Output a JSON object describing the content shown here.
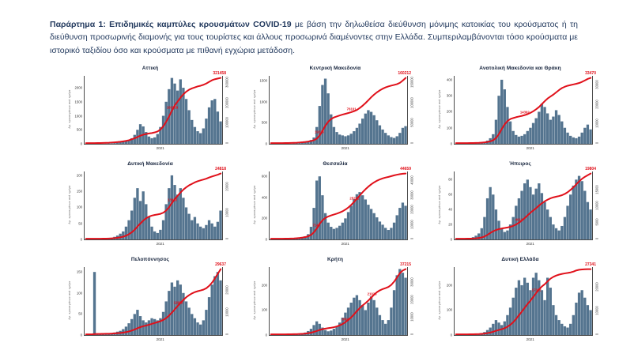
{
  "caption": {
    "bold": "Παράρτημα 1: Επιδημικές καμπύλες κρουσμάτων COVID-19",
    "regular": " με βάση την δηλωθείσα διεύθυνση μόνιμης κατοικίας του κρούσματος ή τη διεύθυνση προσωρινής διαμονής για τους τουρίστες και άλλους προσωρινά διαμένοντες στην Ελλάδα. Συμπεριλαμβάνονται τόσο κρούσματα με ιστορικό ταξιδίου όσο και κρούσματα με πιθανή εγχώρια μετάδοση."
  },
  "colors": {
    "bar": "#54748f",
    "line": "#e0101a",
    "axis": "#4a4a4a",
    "title": "#16243d",
    "caption_text": "#233a5e"
  },
  "axes": {
    "y_left_title": "Αρ. κρουσμάτων ανά ημέρα",
    "x_tick_label": "2021"
  },
  "chart_data": [
    {
      "type": "bar+line",
      "title": "Αττική",
      "cumulative_total_label": "321458",
      "ymax": 2400,
      "left_ticks": [
        0,
        500,
        1000,
        1500,
        2000
      ],
      "cmax": 321458,
      "right_ticks": [
        0,
        100000,
        200000,
        300000
      ],
      "x_tick": "2021",
      "annotations": [
        {
          "idx": 30,
          "label": "160729"
        }
      ],
      "bars": [
        0,
        0,
        0,
        1,
        2,
        3,
        5,
        8,
        12,
        18,
        25,
        40,
        60,
        80,
        100,
        140,
        200,
        320,
        500,
        700,
        620,
        420,
        260,
        200,
        230,
        350,
        600,
        1000,
        1500,
        1950,
        2350,
        2150,
        1900,
        2300,
        2000,
        1600,
        1200,
        850,
        600,
        450,
        380,
        550,
        900,
        1300,
        1550,
        1600,
        1150,
        800
      ],
      "cum_pct": [
        0,
        0,
        0,
        0,
        0.1,
        0.2,
        0.3,
        0.5,
        0.7,
        1,
        1.3,
        1.7,
        2.2,
        2.8,
        3.5,
        4.5,
        6,
        7.5,
        9.5,
        11.5,
        13,
        14,
        14.8,
        15.5,
        16.5,
        18,
        21,
        26,
        33,
        41,
        50,
        58,
        64,
        70,
        75,
        79,
        82,
        84,
        85.5,
        87,
        88,
        89.5,
        91.5,
        94,
        96.5,
        98,
        99,
        100
      ]
    },
    {
      "type": "bar+line",
      "title": "Κεντρική Μακεδονία",
      "cumulative_total_label": "160212",
      "ymax": 1600,
      "left_ticks": [
        0,
        500,
        1000,
        1500
      ],
      "cmax": 160212,
      "right_ticks": [
        0,
        50000,
        100000,
        150000
      ],
      "x_tick": "2021",
      "annotations": [
        {
          "idx": 17,
          "label": "19226"
        },
        {
          "idx": 28,
          "label": "76101"
        }
      ],
      "bars": [
        0,
        0,
        0,
        0,
        1,
        2,
        3,
        5,
        8,
        12,
        20,
        30,
        45,
        60,
        90,
        150,
        400,
        900,
        1400,
        1550,
        1200,
        700,
        400,
        280,
        220,
        200,
        180,
        200,
        240,
        300,
        380,
        480,
        600,
        720,
        800,
        760,
        680,
        560,
        440,
        340,
        260,
        200,
        160,
        140,
        180,
        260,
        380,
        420
      ],
      "cum_pct": [
        0,
        0,
        0,
        0,
        0,
        0.1,
        0.2,
        0.3,
        0.5,
        0.7,
        1,
        1.4,
        1.9,
        2.5,
        3.3,
        4.5,
        7,
        12,
        19,
        27,
        33,
        37,
        39.5,
        41,
        42.5,
        43.8,
        45,
        46.2,
        47.5,
        49,
        51,
        54,
        57.5,
        61.5,
        66,
        70.5,
        74.5,
        78,
        81,
        83.5,
        85.5,
        87,
        88.2,
        89.3,
        90.5,
        92.5,
        96,
        100
      ]
    },
    {
      "type": "bar+line",
      "title": "Ανατολική Μακεδονία και Θράκη",
      "cumulative_total_label": "33470",
      "ymax": 420,
      "left_ticks": [
        0,
        100,
        200,
        300,
        400
      ],
      "cmax": 33470,
      "right_ticks": [
        0,
        10000,
        20000,
        30000
      ],
      "x_tick": "2021",
      "annotations": [
        {
          "idx": 24,
          "label": "14392"
        }
      ],
      "bars": [
        0,
        0,
        0,
        0,
        1,
        1,
        2,
        3,
        5,
        8,
        12,
        20,
        35,
        60,
        150,
        300,
        400,
        340,
        230,
        140,
        80,
        55,
        45,
        50,
        60,
        80,
        100,
        130,
        160,
        200,
        250,
        230,
        190,
        150,
        170,
        210,
        180,
        140,
        100,
        70,
        50,
        40,
        35,
        45,
        70,
        100,
        120,
        90
      ],
      "cum_pct": [
        0,
        0,
        0,
        0,
        0,
        0.1,
        0.2,
        0.3,
        0.5,
        0.8,
        1.2,
        1.8,
        2.8,
        4.5,
        8,
        14,
        22,
        29,
        34,
        37,
        38.5,
        39.8,
        40.8,
        41.8,
        43,
        44.5,
        46.5,
        49,
        52,
        55.5,
        60,
        64.5,
        68.5,
        71.5,
        74.5,
        78,
        81.5,
        84.5,
        86.5,
        88,
        89,
        90,
        91,
        92.2,
        94,
        96.2,
        98.5,
        100
      ]
    },
    {
      "type": "bar+line",
      "title": "Δυτική Μακεδονία",
      "cumulative_total_label": "24818",
      "ymax": 210,
      "left_ticks": [
        0,
        50,
        100,
        150,
        200
      ],
      "cmax": 24818,
      "right_ticks": [
        0,
        10000,
        20000
      ],
      "x_tick": "2021",
      "annotations": [
        {
          "idx": 30,
          "label": "13650"
        }
      ],
      "bars": [
        0,
        0,
        0,
        0,
        0,
        1,
        1,
        2,
        3,
        5,
        8,
        12,
        18,
        25,
        40,
        60,
        90,
        130,
        160,
        120,
        150,
        110,
        70,
        40,
        25,
        20,
        30,
        60,
        110,
        160,
        200,
        170,
        140,
        160,
        130,
        100,
        80,
        60,
        70,
        50,
        40,
        35,
        45,
        60,
        50,
        40,
        55,
        90
      ],
      "cum_pct": [
        0,
        0,
        0,
        0,
        0,
        0,
        0.1,
        0.2,
        0.4,
        0.6,
        1,
        1.5,
        2.2,
        3.2,
        4.8,
        7,
        10,
        14,
        19,
        23.5,
        28,
        31.5,
        34,
        35.5,
        36.5,
        37.3,
        38.2,
        40,
        43.5,
        48.5,
        55,
        61,
        66,
        71,
        75.5,
        79,
        82,
        84.2,
        86.5,
        88.2,
        89.6,
        90.8,
        92.2,
        94,
        95.5,
        96.8,
        98.2,
        100
      ]
    },
    {
      "type": "bar+line",
      "title": "Θεσσαλία",
      "cumulative_total_label": "44659",
      "ymax": 640,
      "left_ticks": [
        0,
        200,
        400,
        600
      ],
      "cmax": 44659,
      "right_ticks": [
        0,
        10000,
        20000,
        30000,
        40000
      ],
      "x_tick": "2021",
      "annotations": [
        {
          "idx": 16,
          "label": "7145"
        },
        {
          "idx": 29,
          "label": "25232"
        }
      ],
      "bars": [
        0,
        0,
        0,
        0,
        1,
        1,
        2,
        3,
        5,
        8,
        12,
        18,
        30,
        50,
        120,
        300,
        560,
        600,
        420,
        250,
        160,
        120,
        100,
        110,
        130,
        160,
        200,
        260,
        320,
        380,
        430,
        450,
        420,
        380,
        330,
        290,
        250,
        210,
        170,
        140,
        110,
        90,
        110,
        160,
        230,
        300,
        350,
        320
      ],
      "cum_pct": [
        0,
        0,
        0,
        0,
        0,
        0.1,
        0.2,
        0.3,
        0.5,
        0.8,
        1.2,
        1.8,
        2.6,
        3.8,
        6,
        10,
        16,
        23,
        28.5,
        32,
        34.2,
        35.8,
        37.2,
        38.6,
        40.2,
        42.2,
        44.8,
        48,
        52,
        56.5,
        61.5,
        66.5,
        71.5,
        76,
        80,
        83.5,
        86.5,
        89,
        91,
        92.6,
        93.8,
        94.8,
        96,
        97.2,
        98.2,
        99,
        99.6,
        100
      ]
    },
    {
      "type": "bar+line",
      "title": "Ήπειρος",
      "cumulative_total_label": "19804",
      "ymax": 90,
      "left_ticks": [
        0,
        20,
        40,
        60,
        80
      ],
      "cmax": 19804,
      "right_ticks": [
        0,
        5000,
        10000,
        15000
      ],
      "x_tick": "2021",
      "annotations": [
        {
          "idx": 22,
          "label": "4911"
        }
      ],
      "bars": [
        0,
        0,
        0,
        1,
        1,
        2,
        3,
        5,
        8,
        15,
        30,
        55,
        70,
        60,
        40,
        25,
        15,
        10,
        12,
        20,
        30,
        45,
        55,
        65,
        75,
        80,
        70,
        60,
        68,
        75,
        62,
        50,
        40,
        30,
        20,
        15,
        12,
        18,
        30,
        45,
        60,
        72,
        80,
        85,
        78,
        65,
        50,
        40
      ],
      "cum_pct": [
        0,
        0,
        0,
        0,
        0.1,
        0.2,
        0.4,
        0.7,
        1.2,
        2,
        3.5,
        6,
        9,
        11.5,
        13.5,
        14.8,
        15.8,
        16.5,
        17.3,
        18.3,
        19.8,
        22,
        24.8,
        28,
        31.8,
        36,
        40,
        43.5,
        47,
        51,
        54.5,
        57.5,
        60,
        62,
        63.5,
        64.5,
        65.5,
        66.8,
        68.8,
        71.5,
        75,
        79,
        83.5,
        88,
        92,
        95,
        97.5,
        100
      ]
    },
    {
      "type": "bar+line",
      "title": "Πελοπόννησος",
      "cumulative_total_label": "29637",
      "ymax": 160,
      "left_ticks": [
        0,
        50,
        100,
        150
      ],
      "cmax": 29637,
      "right_ticks": [
        0,
        10000,
        20000
      ],
      "x_tick": "2021",
      "annotations": [
        {
          "idx": 32,
          "label": "12892"
        }
      ],
      "bars": [
        0,
        0,
        0,
        150,
        2,
        1,
        1,
        2,
        3,
        4,
        6,
        8,
        10,
        14,
        20,
        28,
        38,
        50,
        60,
        45,
        35,
        30,
        35,
        40,
        38,
        35,
        40,
        55,
        80,
        105,
        125,
        115,
        130,
        120,
        100,
        80,
        65,
        50,
        40,
        30,
        25,
        35,
        60,
        90,
        120,
        140,
        150,
        130
      ],
      "cum_pct": [
        0,
        0,
        0,
        0.5,
        0.6,
        0.7,
        0.8,
        0.9,
        1,
        1.2,
        1.5,
        1.8,
        2.2,
        2.8,
        3.5,
        4.5,
        5.8,
        7.5,
        9.5,
        11.2,
        12.5,
        13.6,
        14.8,
        16.2,
        17.5,
        18.8,
        20.2,
        22.2,
        25,
        28.8,
        33.5,
        38.5,
        43.5,
        48.5,
        53,
        57,
        60.2,
        62.8,
        64.8,
        66.2,
        67.3,
        68.6,
        70.8,
        74.5,
        79.5,
        86,
        93,
        100
      ]
    },
    {
      "type": "bar+line",
      "title": "Κρήτη",
      "cumulative_total_label": "37215",
      "ymax": 270,
      "left_ticks": [
        0,
        100,
        200
      ],
      "cmax": 37215,
      "right_ticks": [
        0,
        10000,
        20000,
        30000
      ],
      "x_tick": "2021",
      "annotations": [
        {
          "idx": 26,
          "label": "6996"
        },
        {
          "idx": 35,
          "label": "21026"
        }
      ],
      "bars": [
        0,
        0,
        0,
        0,
        0,
        1,
        1,
        2,
        2,
        3,
        4,
        6,
        10,
        16,
        25,
        40,
        55,
        45,
        30,
        20,
        15,
        18,
        25,
        35,
        50,
        70,
        90,
        110,
        130,
        150,
        160,
        140,
        120,
        100,
        130,
        155,
        140,
        110,
        80,
        60,
        45,
        60,
        110,
        180,
        240,
        265,
        250,
        230
      ],
      "cum_pct": [
        0,
        0,
        0,
        0,
        0,
        0,
        0.1,
        0.2,
        0.3,
        0.4,
        0.6,
        0.8,
        1.2,
        1.8,
        2.6,
        3.8,
        5.2,
        6.8,
        8,
        8.8,
        9.5,
        10.2,
        11,
        12.2,
        13.8,
        16,
        18.8,
        22.2,
        26.2,
        30.8,
        35.8,
        40.5,
        44.5,
        48,
        52,
        56.5,
        61,
        64.8,
        67.5,
        69.5,
        71,
        72.8,
        76,
        81,
        87.5,
        94,
        98,
        100
      ]
    },
    {
      "type": "bar+line",
      "title": "Δυτική Ελλάδα",
      "cumulative_total_label": "27341",
      "ymax": 270,
      "left_ticks": [
        0,
        100,
        200
      ],
      "cmax": 27341,
      "right_ticks": [
        0,
        10000,
        20000
      ],
      "x_tick": "2021",
      "annotations": [
        {
          "idx": 28,
          "label": "17362"
        }
      ],
      "bars": [
        0,
        0,
        0,
        0,
        1,
        1,
        2,
        3,
        5,
        8,
        12,
        20,
        30,
        45,
        60,
        50,
        40,
        55,
        80,
        110,
        150,
        190,
        220,
        200,
        230,
        210,
        180,
        230,
        250,
        220,
        180,
        140,
        230,
        190,
        120,
        80,
        60,
        45,
        35,
        30,
        45,
        80,
        130,
        170,
        180,
        150,
        120,
        100
      ],
      "cum_pct": [
        0,
        0,
        0,
        0,
        0,
        0.1,
        0.2,
        0.3,
        0.5,
        0.8,
        1.2,
        1.9,
        2.8,
        4,
        5.5,
        6.8,
        8,
        9.5,
        11.8,
        14.8,
        18.8,
        23.8,
        29.5,
        35,
        41,
        46.8,
        51.8,
        57.5,
        63.5,
        69,
        73.5,
        77,
        81.5,
        85.5,
        88.2,
        90.2,
        91.6,
        92.7,
        93.5,
        94.2,
        95,
        96.2,
        98,
        99,
        99.5,
        99.8,
        99.9,
        100
      ]
    }
  ]
}
